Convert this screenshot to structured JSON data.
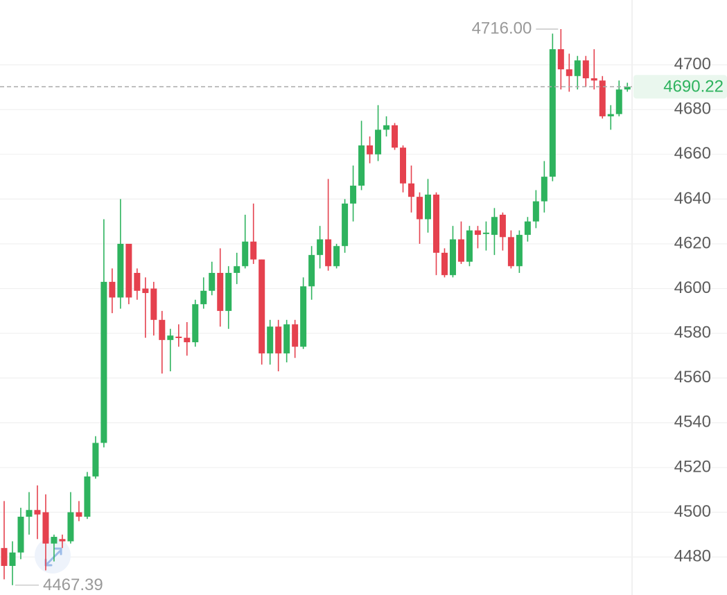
{
  "chart_data": {
    "type": "candlestick",
    "up_color": "#2eb35e",
    "down_color": "#e5414e",
    "open": [
      4484,
      4476,
      4482,
      4498,
      4501,
      4500,
      4486,
      4488,
      4487,
      4500,
      4498,
      4516,
      4531,
      4603,
      4596,
      4620,
      4607,
      4600,
      4600,
      4586,
      4577,
      4578.5,
      4578,
      4576,
      4593,
      4599,
      4607,
      4590,
      4607,
      4610,
      4621,
      4613,
      4571,
      4583,
      4571,
      4584,
      4574,
      4601,
      4615,
      4622,
      4610,
      4619,
      4638,
      4646,
      4664,
      4660,
      4671,
      4673,
      4663,
      4647,
      4641,
      4631,
      4642,
      4616,
      4606,
      4622,
      4612,
      4626,
      4624.5,
      4624,
      4633,
      4623,
      4610,
      4624,
      4630,
      4639,
      4650,
      4707,
      4698,
      4695,
      4702,
      4694,
      4693,
      4677,
      4678,
      4689
    ],
    "high": [
      4505,
      4487,
      4502,
      4509,
      4512,
      4508,
      4490,
      4490,
      4509,
      4505,
      4518,
      4534,
      4631,
      4609,
      4640,
      4620,
      4609,
      4605,
      4603,
      4590,
      4582,
      4584,
      4585,
      4595,
      4605,
      4612,
      4618,
      4610,
      4616,
      4633,
      4638,
      4613,
      4586,
      4586,
      4586,
      4586,
      4605,
      4619,
      4628,
      4649,
      4620,
      4640,
      4655,
      4675,
      4668,
      4682,
      4677,
      4674,
      4664,
      4655,
      4643,
      4649,
      4643,
      4618,
      4628,
      4630,
      4628,
      4628,
      4630,
      4636,
      4634,
      4626,
      4626,
      4632,
      4644,
      4657,
      4714,
      4716,
      4705,
      4704,
      4704,
      4707,
      4695,
      4682,
      4693,
      4692
    ],
    "low": [
      4470,
      4467.39,
      4479,
      4490,
      4488,
      4474,
      4478,
      4484,
      4486,
      4496,
      4497,
      4515,
      4529,
      4589,
      4591,
      4593,
      4595,
      4578,
      4579,
      4562,
      4563,
      4574,
      4570,
      4574,
      4591,
      4597,
      4583,
      4582,
      4602,
      4609,
      4611,
      4566,
      4566,
      4563,
      4567,
      4569,
      4573,
      4595,
      4609,
      4608,
      4609,
      4616,
      4630,
      4644,
      4656,
      4657,
      4668,
      4662,
      4643,
      4634,
      4620,
      4625,
      4606,
      4605,
      4605,
      4611,
      4610,
      4618,
      4617,
      4615,
      4617,
      4609,
      4607,
      4621,
      4627,
      4634,
      4648,
      4689,
      4688,
      4689,
      4690,
      4689,
      4676,
      4671,
      4677,
      4688
    ],
    "close": [
      4476,
      4482,
      4498,
      4501,
      4499,
      4486,
      4489,
      4487,
      4500,
      4498,
      4516,
      4531,
      4603,
      4596,
      4620,
      4596,
      4599,
      4598,
      4586,
      4577,
      4579,
      4578,
      4576,
      4593,
      4599,
      4607,
      4590,
      4607,
      4610,
      4621,
      4613,
      4571,
      4583,
      4571,
      4584,
      4574,
      4601,
      4615,
      4622,
      4610,
      4619,
      4638,
      4646,
      4664,
      4660,
      4671,
      4673,
      4663,
      4647,
      4641,
      4631,
      4642,
      4616,
      4606,
      4622,
      4612,
      4626,
      4624,
      4625,
      4632,
      4623,
      4610,
      4624,
      4630,
      4639,
      4650,
      4707,
      4698,
      4695,
      4702,
      4694,
      4693,
      4677,
      4678,
      4689,
      4690.22
    ],
    "ylim": [
      4463,
      4729
    ],
    "yticks": [
      4480,
      4500,
      4520,
      4540,
      4560,
      4580,
      4600,
      4620,
      4640,
      4660,
      4680,
      4700
    ],
    "grid": true,
    "high_label": {
      "value": 4716,
      "label": "4716.00"
    },
    "low_label": 4467.39,
    "last_price": 4690.22
  }
}
